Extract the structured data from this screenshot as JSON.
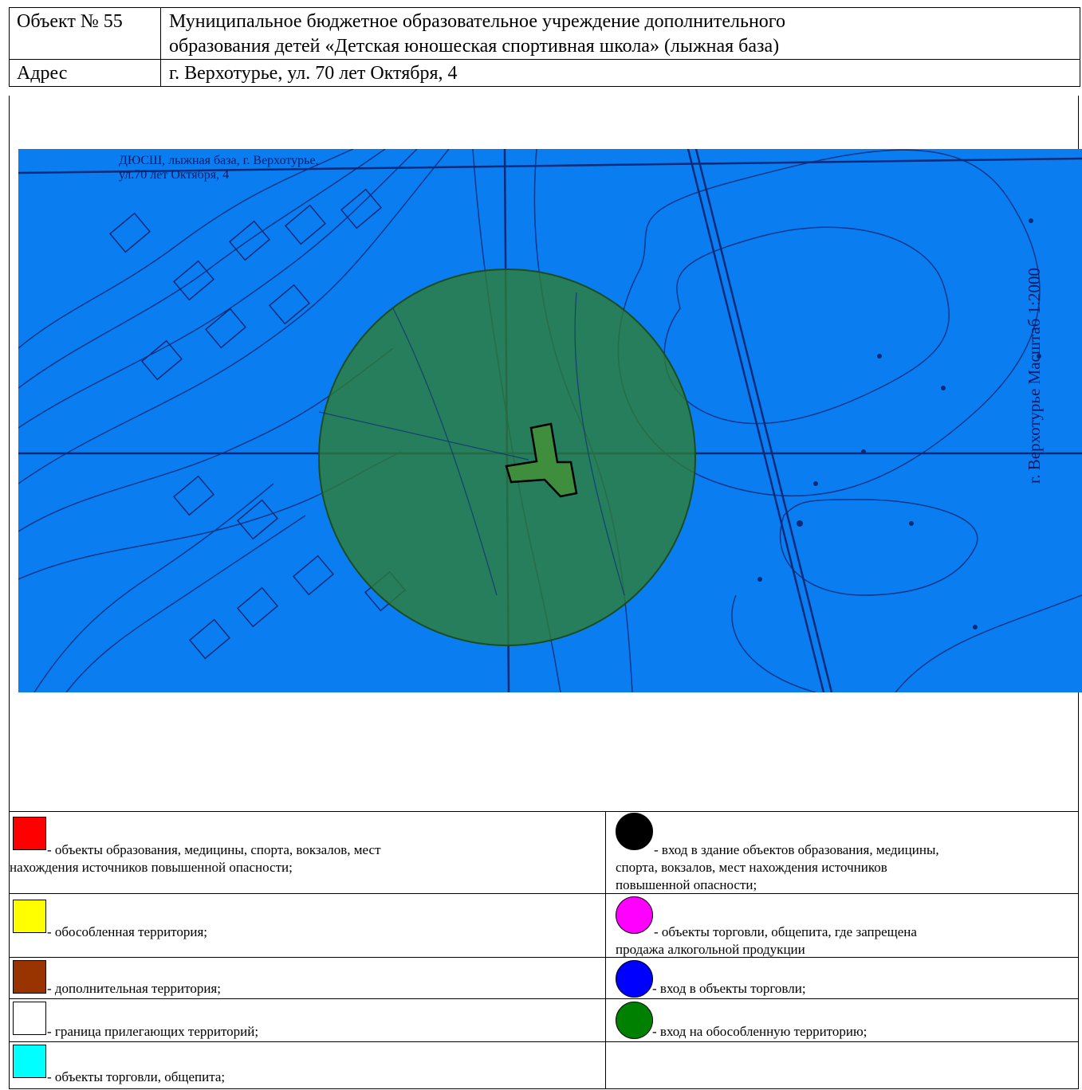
{
  "header": {
    "object_label": "Объект № 55",
    "object_value_line1": "Муниципальное бюджетное образовательное учреждение дополнительного",
    "object_value_line2": "образования детей «Детская юношеская спортивная школа» (лыжная база)",
    "address_label": "Адрес",
    "address_value": "г. Верхотурье, ул. 70 лет Октября, 4"
  },
  "map": {
    "caption_line1": "ДЮСШ, лыжная база, г. Верхотурье,",
    "caption_line2": "ул.70 лет Октября, 4",
    "scale_text": "г. Верхотурье Масштаб 1:2000",
    "background_color": "#0a7ef0",
    "zone_color": "#2e7d32"
  },
  "legend": {
    "left": [
      {
        "color": "#ff0000",
        "text1": "- объекты образования, медицины, спорта, вокзалов, мест",
        "text2": "нахождения источников повышенной опасности;"
      },
      {
        "color": "#ffff00",
        "text1": "- обособленная территория;",
        "text2": ""
      },
      {
        "color": "#993300",
        "text1": "- дополнительная территория;",
        "text2": ""
      },
      {
        "color": "#ffffff",
        "text1": "- граница прилегающих территорий;",
        "text2": ""
      },
      {
        "color": "#00ffff",
        "text1": "- объекты торговли, общепита;",
        "text2": ""
      }
    ],
    "right": [
      {
        "color": "#000000",
        "text1": "- вход в здание объектов образования, медицины,",
        "text2": "спорта, вокзалов, мест нахождения источников",
        "text3": "повышенной опасности;"
      },
      {
        "color": "#ff00ff",
        "text1": "- объекты торговли, общепита, где запрещена",
        "text2": "продажа алкогольной продукции",
        "text3": ""
      },
      {
        "color": "#0000ff",
        "text1": "- вход в объекты торговли;",
        "text2": "",
        "text3": ""
      },
      {
        "color": "#008000",
        "text1": "- вход на обособленную территорию;",
        "text2": "",
        "text3": ""
      }
    ]
  }
}
